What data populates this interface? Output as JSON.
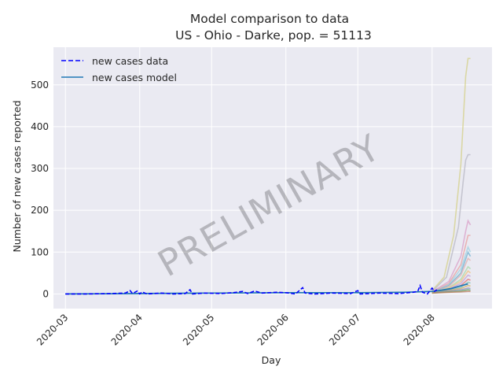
{
  "chart_data": {
    "type": "line",
    "title_line1": "Model comparison to data",
    "title_line2": "US - Ohio - Darke, pop. = 51113",
    "xlabel": "Day",
    "ylabel": "Number of new cases reported",
    "watermark": "PRELIMINARY",
    "x_range": [
      "2020-02-25",
      "2020-08-26"
    ],
    "y_range": [
      -35,
      590
    ],
    "x_ticks": [
      {
        "date": "2020-03-01",
        "label": "2020-03"
      },
      {
        "date": "2020-04-01",
        "label": "2020-04"
      },
      {
        "date": "2020-05-01",
        "label": "2020-05"
      },
      {
        "date": "2020-06-01",
        "label": "2020-06"
      },
      {
        "date": "2020-07-01",
        "label": "2020-07"
      },
      {
        "date": "2020-08-01",
        "label": "2020-08"
      }
    ],
    "y_ticks": [
      0,
      100,
      200,
      300,
      400,
      500
    ],
    "grid": true,
    "legend_position": "top-left",
    "colors": {
      "background": "#eaeaf2",
      "grid": "#ffffff",
      "data_line": "#0000ff",
      "model_line": "#1f77b4"
    },
    "series": [
      {
        "name": "new cases data",
        "style": "dashed",
        "points": [
          [
            "2020-03-01",
            0
          ],
          [
            "2020-03-10",
            0
          ],
          [
            "2020-03-20",
            1
          ],
          [
            "2020-03-26",
            2
          ],
          [
            "2020-03-28",
            8
          ],
          [
            "2020-03-29",
            1
          ],
          [
            "2020-03-31",
            7
          ],
          [
            "2020-04-01",
            0
          ],
          [
            "2020-04-02",
            5
          ],
          [
            "2020-04-04",
            0
          ],
          [
            "2020-04-10",
            2
          ],
          [
            "2020-04-15",
            0
          ],
          [
            "2020-04-20",
            1
          ],
          [
            "2020-04-22",
            10
          ],
          [
            "2020-04-23",
            0
          ],
          [
            "2020-04-28",
            2
          ],
          [
            "2020-05-05",
            1
          ],
          [
            "2020-05-10",
            3
          ],
          [
            "2020-05-14",
            6
          ],
          [
            "2020-05-16",
            1
          ],
          [
            "2020-05-19",
            7
          ],
          [
            "2020-05-22",
            2
          ],
          [
            "2020-05-28",
            4
          ],
          [
            "2020-06-01",
            3
          ],
          [
            "2020-06-05",
            0
          ],
          [
            "2020-06-08",
            15
          ],
          [
            "2020-06-09",
            2
          ],
          [
            "2020-06-13",
            0
          ],
          [
            "2020-06-20",
            2
          ],
          [
            "2020-06-28",
            1
          ],
          [
            "2020-07-01",
            8
          ],
          [
            "2020-07-02",
            0
          ],
          [
            "2020-07-10",
            2
          ],
          [
            "2020-07-18",
            1
          ],
          [
            "2020-07-24",
            4
          ],
          [
            "2020-07-26",
            6
          ],
          [
            "2020-07-27",
            20
          ],
          [
            "2020-07-28",
            4
          ],
          [
            "2020-07-30",
            0
          ],
          [
            "2020-08-01",
            14
          ],
          [
            "2020-08-02",
            6
          ],
          [
            "2020-08-03",
            10
          ]
        ]
      },
      {
        "name": "new cases model",
        "style": "solid",
        "points": [
          [
            "2020-03-01",
            0
          ],
          [
            "2020-04-01",
            1
          ],
          [
            "2020-05-01",
            2
          ],
          [
            "2020-06-01",
            3
          ],
          [
            "2020-07-01",
            3
          ],
          [
            "2020-07-20",
            4
          ],
          [
            "2020-08-01",
            6
          ],
          [
            "2020-08-05",
            9
          ],
          [
            "2020-08-09",
            13
          ],
          [
            "2020-08-12",
            18
          ],
          [
            "2020-08-16",
            24
          ]
        ]
      }
    ],
    "ensemble_projections": [
      {
        "color": "#d4d08a",
        "points": [
          [
            "2020-08-01",
            8
          ],
          [
            "2020-08-06",
            40
          ],
          [
            "2020-08-10",
            140
          ],
          [
            "2020-08-13",
            310
          ],
          [
            "2020-08-15",
            520
          ],
          [
            "2020-08-16",
            563
          ],
          [
            "2020-08-17",
            563
          ]
        ]
      },
      {
        "color": "#b8b8c4",
        "points": [
          [
            "2020-08-01",
            6
          ],
          [
            "2020-08-07",
            40
          ],
          [
            "2020-08-12",
            160
          ],
          [
            "2020-08-14",
            270
          ],
          [
            "2020-08-15",
            320
          ],
          [
            "2020-08-16",
            333
          ],
          [
            "2020-08-17",
            333
          ]
        ]
      },
      {
        "color": "#d9a0c8",
        "points": [
          [
            "2020-08-01",
            5
          ],
          [
            "2020-08-08",
            30
          ],
          [
            "2020-08-13",
            90
          ],
          [
            "2020-08-15",
            150
          ],
          [
            "2020-08-16",
            175
          ],
          [
            "2020-08-17",
            165
          ]
        ]
      },
      {
        "color": "#e8a0a0",
        "points": [
          [
            "2020-08-01",
            5
          ],
          [
            "2020-08-08",
            25
          ],
          [
            "2020-08-13",
            70
          ],
          [
            "2020-08-16",
            140
          ],
          [
            "2020-08-17",
            140
          ]
        ]
      },
      {
        "color": "#a0d0e0",
        "points": [
          [
            "2020-08-01",
            4
          ],
          [
            "2020-08-08",
            22
          ],
          [
            "2020-08-13",
            60
          ],
          [
            "2020-08-16",
            112
          ],
          [
            "2020-08-17",
            100
          ]
        ]
      },
      {
        "color": "#70b0d0",
        "points": [
          [
            "2020-08-01",
            4
          ],
          [
            "2020-08-08",
            20
          ],
          [
            "2020-08-13",
            50
          ],
          [
            "2020-08-16",
            100
          ],
          [
            "2020-08-17",
            90
          ]
        ]
      },
      {
        "color": "#e0b0b0",
        "points": [
          [
            "2020-08-01",
            4
          ],
          [
            "2020-08-08",
            18
          ],
          [
            "2020-08-13",
            45
          ],
          [
            "2020-08-16",
            85
          ],
          [
            "2020-08-17",
            80
          ]
        ]
      },
      {
        "color": "#a8d8a8",
        "points": [
          [
            "2020-08-01",
            3
          ],
          [
            "2020-08-08",
            15
          ],
          [
            "2020-08-13",
            35
          ],
          [
            "2020-08-16",
            65
          ],
          [
            "2020-08-17",
            60
          ]
        ]
      },
      {
        "color": "#f0c080",
        "points": [
          [
            "2020-08-01",
            3
          ],
          [
            "2020-08-08",
            14
          ],
          [
            "2020-08-13",
            30
          ],
          [
            "2020-08-16",
            55
          ],
          [
            "2020-08-17",
            50
          ]
        ]
      },
      {
        "color": "#c0a0d8",
        "points": [
          [
            "2020-08-01",
            3
          ],
          [
            "2020-08-08",
            12
          ],
          [
            "2020-08-13",
            25
          ],
          [
            "2020-08-16",
            45
          ],
          [
            "2020-08-17",
            42
          ]
        ]
      },
      {
        "color": "#e07070",
        "points": [
          [
            "2020-08-01",
            3
          ],
          [
            "2020-08-08",
            10
          ],
          [
            "2020-08-13",
            20
          ],
          [
            "2020-08-16",
            35
          ],
          [
            "2020-08-17",
            33
          ]
        ]
      },
      {
        "color": "#80c0b0",
        "points": [
          [
            "2020-08-01",
            3
          ],
          [
            "2020-08-08",
            9
          ],
          [
            "2020-08-13",
            16
          ],
          [
            "2020-08-16",
            28
          ],
          [
            "2020-08-17",
            26
          ]
        ]
      },
      {
        "color": "#d0b060",
        "points": [
          [
            "2020-08-01",
            2
          ],
          [
            "2020-08-08",
            8
          ],
          [
            "2020-08-13",
            13
          ],
          [
            "2020-08-16",
            20
          ],
          [
            "2020-08-17",
            19
          ]
        ]
      },
      {
        "color": "#9090c0",
        "points": [
          [
            "2020-08-01",
            2
          ],
          [
            "2020-08-08",
            7
          ],
          [
            "2020-08-13",
            10
          ],
          [
            "2020-08-16",
            14
          ],
          [
            "2020-08-17",
            13
          ]
        ]
      },
      {
        "color": "#60a060",
        "points": [
          [
            "2020-08-01",
            2
          ],
          [
            "2020-08-08",
            5
          ],
          [
            "2020-08-13",
            7
          ],
          [
            "2020-08-16",
            10
          ],
          [
            "2020-08-17",
            9
          ]
        ]
      },
      {
        "color": "#c08060",
        "points": [
          [
            "2020-08-01",
            2
          ],
          [
            "2020-08-08",
            4
          ],
          [
            "2020-08-13",
            5
          ],
          [
            "2020-08-16",
            6
          ],
          [
            "2020-08-17",
            6
          ]
        ]
      }
    ]
  }
}
